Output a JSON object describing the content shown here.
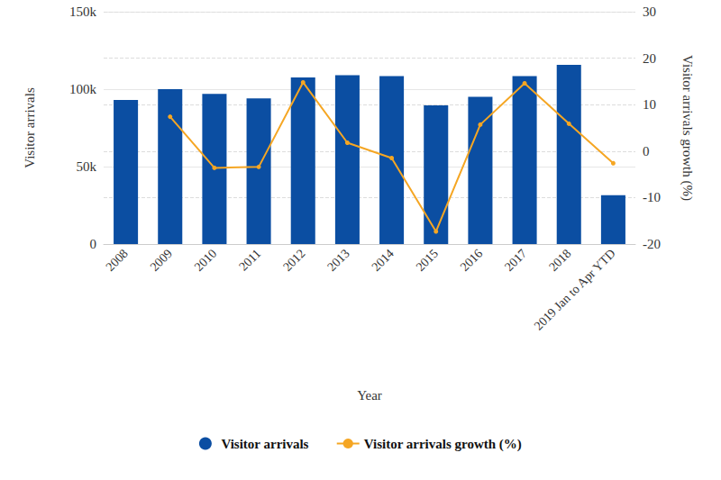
{
  "chart_data": {
    "type": "bar",
    "x_label": "Year",
    "y_label": "Visitor arrivals",
    "y2_label": "Visitor arrivals growth (%)",
    "categories": [
      "2008",
      "2009",
      "2010",
      "2011",
      "2012",
      "2013",
      "2014",
      "2015",
      "2016",
      "2017",
      "2018",
      "2019 Jan to Apr YTD"
    ],
    "series": [
      {
        "name": "Visitor arrivals",
        "type": "bar",
        "color": "#0b4ea2",
        "values": [
          93000,
          100000,
          97000,
          94000,
          107500,
          109000,
          108500,
          89500,
          95000,
          108500,
          115700,
          31500
        ]
      },
      {
        "name": "Visitor arrivals growth (%)",
        "type": "line",
        "axis": "y2",
        "color": "#f5a623",
        "marker": "circle",
        "values": [
          null,
          7.4,
          -3.6,
          -3.4,
          14.8,
          1.8,
          -1.5,
          -17.3,
          5.7,
          14.6,
          5.9,
          -2.6
        ]
      }
    ],
    "ylim": [
      0,
      150000
    ],
    "yticks": [
      0,
      {
        "value": 50000,
        "label": "50k"
      },
      {
        "value": 100000,
        "label": "100k"
      },
      {
        "value": 150000,
        "label": "150k"
      }
    ],
    "y2lim": [
      -20,
      30
    ],
    "y2ticks": [
      -20,
      -10,
      0,
      10,
      20,
      30
    ],
    "grid": true,
    "legend": "bottom"
  }
}
